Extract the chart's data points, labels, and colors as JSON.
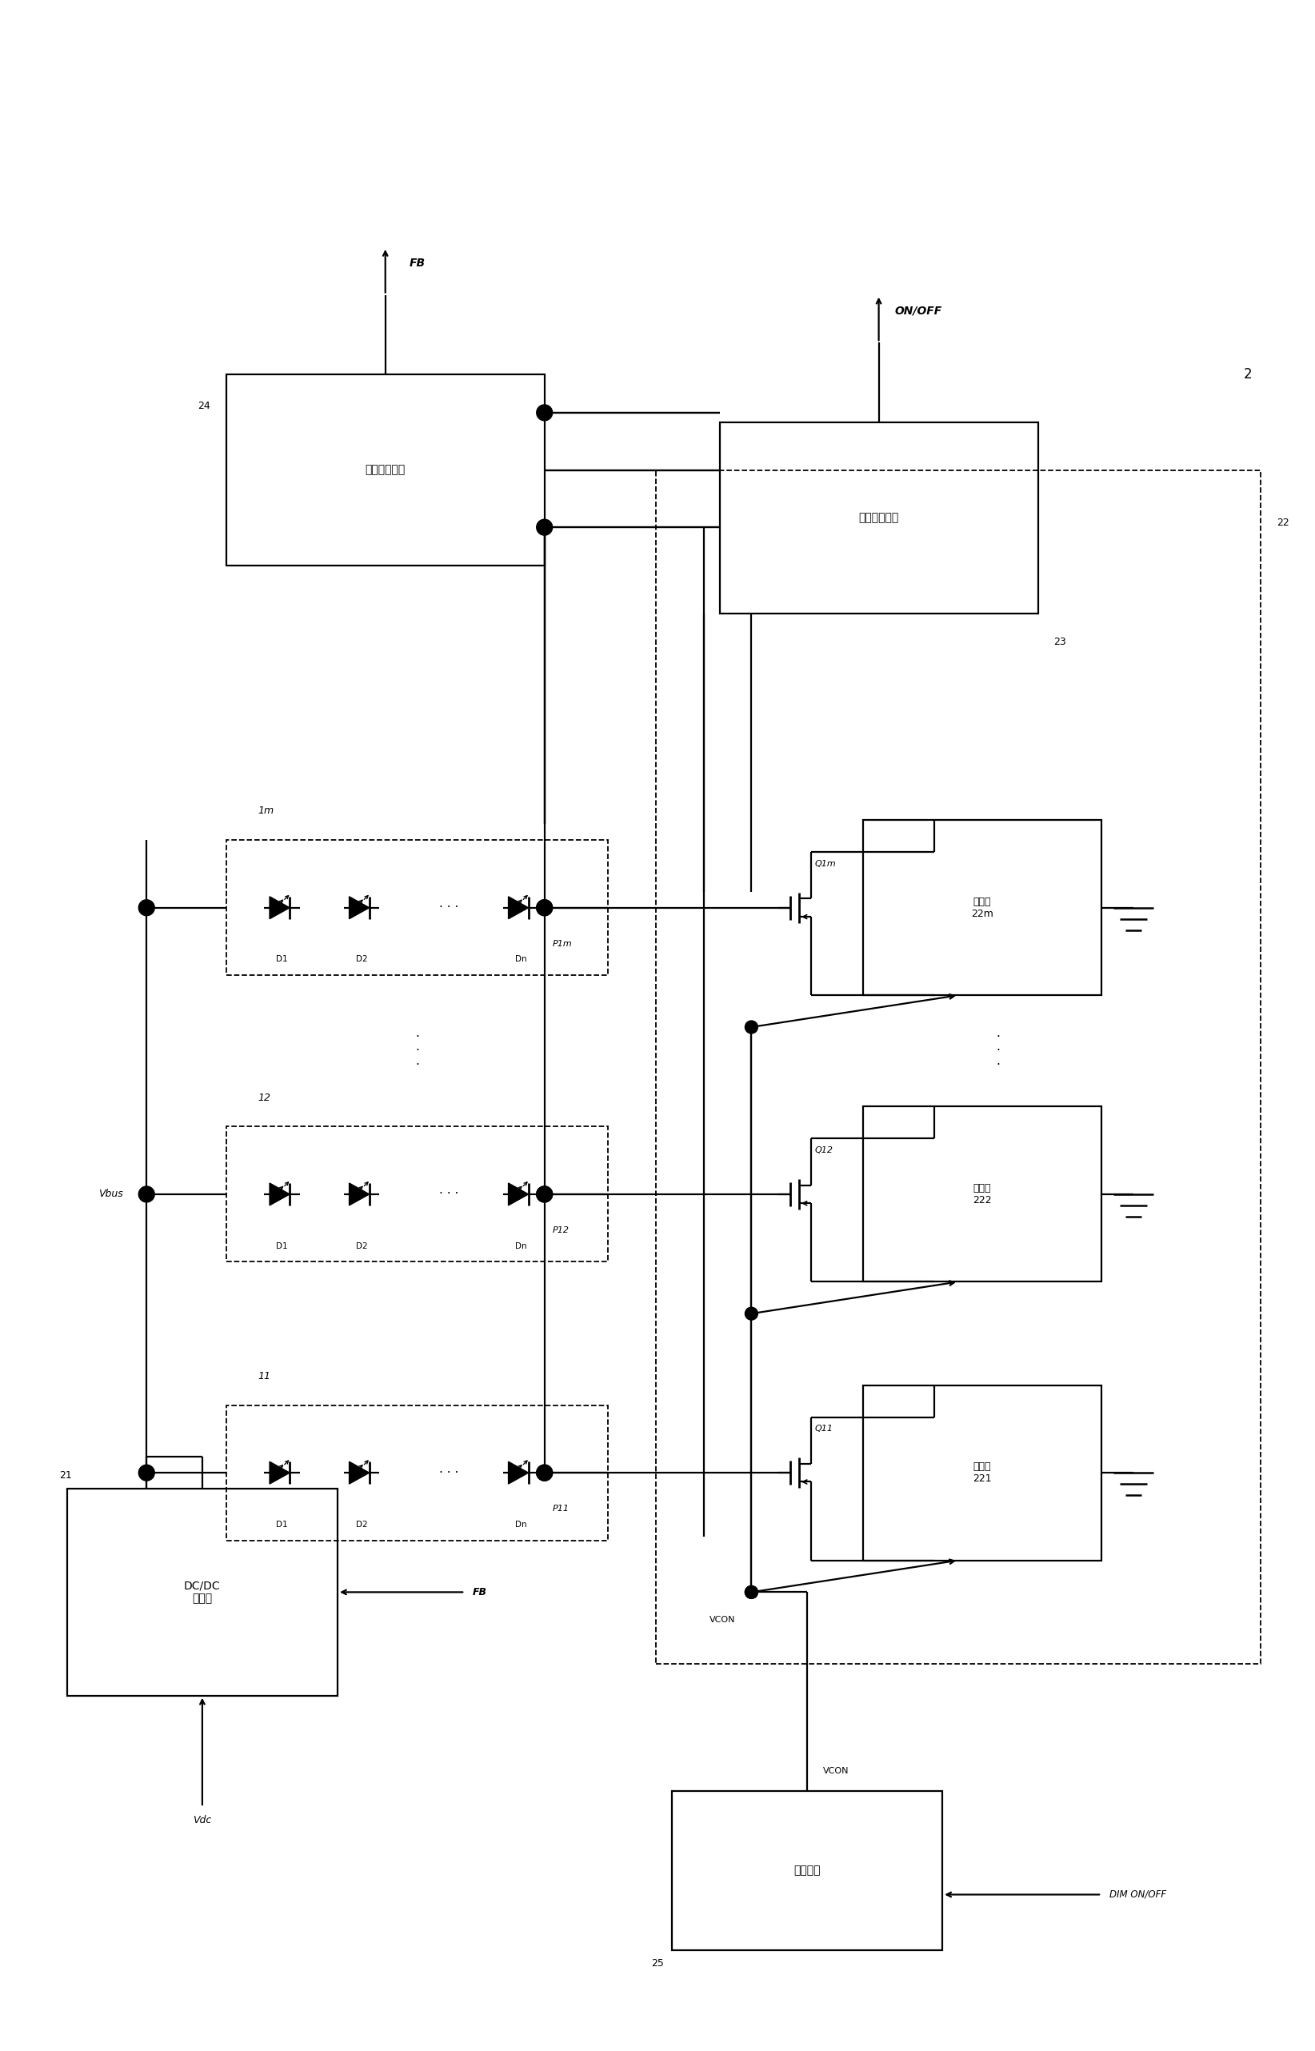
{
  "fig_width": 16.44,
  "fig_height": 25.64,
  "bg_color": "#ffffff",
  "lc": "#000000",
  "lw": 1.6,
  "dlw": 1.3,
  "labels": {
    "FB_top": "FB",
    "ON_OFF": "ON/OFF",
    "block24": "电压补偿电路",
    "block23": "短路保护电路",
    "block21": "DC/DC\n转换器",
    "block221": "调节器\n221",
    "block222": "调节器\n222",
    "block22m": "调节器\n22m",
    "block25": "调光电路",
    "label2": "2",
    "label21": "21",
    "label22": "22",
    "label23": "23",
    "label24": "24",
    "label25": "25",
    "label1m": "1m",
    "label12": "12",
    "label11": "11",
    "Vbus": "Vbus",
    "Vdc": "Vdc",
    "FB_mid": "FB",
    "VCON": "VCON",
    "DIM_ONOFF": "DIM ON/OFF",
    "P1m": "P1m",
    "P12": "P12",
    "P11": "P11",
    "Q1m": "Q1m",
    "Q12": "Q12",
    "Q11": "Q11"
  }
}
